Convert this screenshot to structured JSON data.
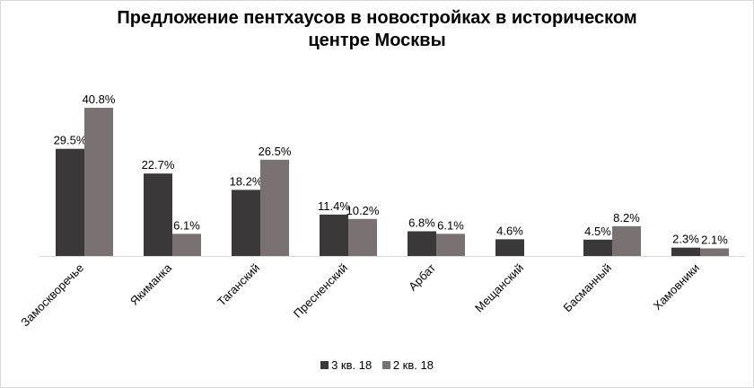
{
  "chart_data": {
    "type": "bar",
    "title_lines": [
      "Предложение пентхаусов в новостройках в историческом",
      "центре Москвы"
    ],
    "categories": [
      "Замоскворечье",
      "Якиманка",
      "Таганский",
      "Пресненский",
      "Арбат",
      "Мещанский",
      "Басманный",
      "Хамовники"
    ],
    "series": [
      {
        "name": "3 кв. 18",
        "color": "#3a3839",
        "values": [
          29.5,
          22.7,
          18.2,
          11.4,
          6.8,
          4.6,
          4.5,
          2.3
        ],
        "labels": [
          "29.5%",
          "22.7%",
          "18.2%",
          "11.4%",
          "6.8%",
          "4.6%",
          "4.5%",
          "2.3%"
        ]
      },
      {
        "name": "2 кв. 18",
        "color": "#7a7272",
        "values": [
          40.8,
          6.1,
          26.5,
          10.2,
          6.1,
          null,
          8.2,
          2.1
        ],
        "labels": [
          "40.8%",
          "6.1%",
          "26.5%",
          "10.2%",
          "6.1%",
          "",
          "8.2%",
          "2.1%"
        ]
      }
    ],
    "ylim": [
      0,
      40.8
    ],
    "grid": false,
    "legend_position": "bottom"
  }
}
